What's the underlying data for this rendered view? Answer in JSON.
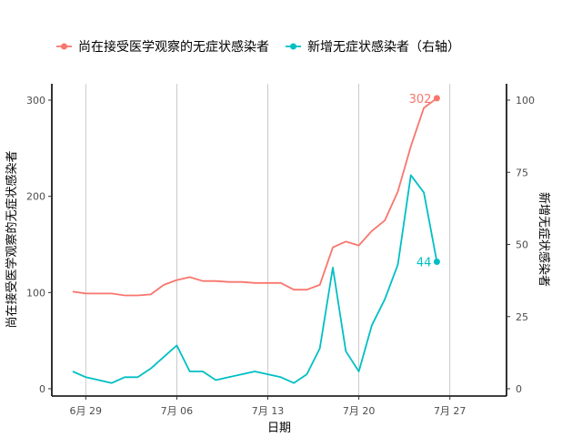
{
  "chart_data": {
    "type": "line",
    "xlabel": "日期",
    "ylabel_left": "尚在接受医学观察的无症状感染者",
    "ylabel_right": "新增无症状感染者",
    "x_ticks": [
      "6月 29",
      "7月 06",
      "7月 13",
      "7月 20",
      "7月 27"
    ],
    "ylim_left": [
      0,
      310
    ],
    "ylim_right": [
      0,
      103
    ],
    "y_ticks_left": [
      0,
      100,
      200,
      300
    ],
    "y_ticks_right": [
      0,
      25,
      50,
      75,
      100
    ],
    "x": [
      "2021-06-28",
      "2021-06-29",
      "2021-06-30",
      "2021-07-01",
      "2021-07-02",
      "2021-07-03",
      "2021-07-04",
      "2021-07-05",
      "2021-07-06",
      "2021-07-07",
      "2021-07-08",
      "2021-07-09",
      "2021-07-10",
      "2021-07-11",
      "2021-07-12",
      "2021-07-13",
      "2021-07-14",
      "2021-07-15",
      "2021-07-16",
      "2021-07-17",
      "2021-07-18",
      "2021-07-19",
      "2021-07-20",
      "2021-07-21",
      "2021-07-22",
      "2021-07-23",
      "2021-07-24",
      "2021-07-25",
      "2021-07-26"
    ],
    "grid": "vertical major lines only",
    "legend_position": "top",
    "series": [
      {
        "name": "尚在接受医学观察的无症状感染者",
        "axis": "left",
        "color": "#F8766D",
        "values": [
          101,
          99,
          99,
          99,
          97,
          97,
          98,
          108,
          113,
          116,
          112,
          112,
          111,
          111,
          110,
          110,
          110,
          103,
          103,
          108,
          147,
          153,
          149,
          164,
          175,
          205,
          252,
          292,
          302
        ],
        "end_label": "302"
      },
      {
        "name": "新增无症状感染者（右轴）",
        "axis": "right",
        "color": "#00BFC4",
        "values": [
          6,
          4,
          3,
          2,
          4,
          4,
          7,
          11,
          15,
          6,
          6,
          3,
          4,
          5,
          6,
          5,
          4,
          2,
          5,
          14,
          42,
          13,
          6,
          22,
          31,
          43,
          74,
          68,
          44
        ],
        "end_label": "44"
      }
    ]
  }
}
